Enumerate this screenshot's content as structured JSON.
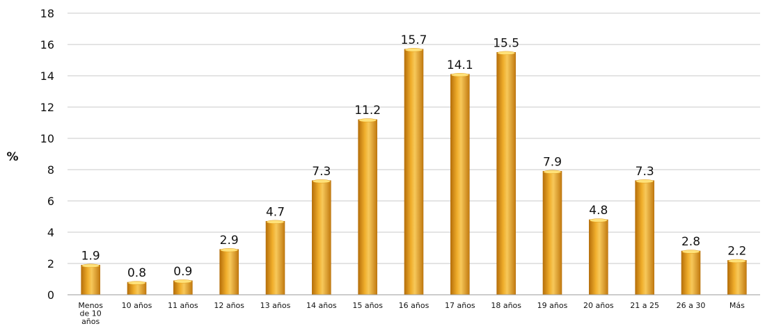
{
  "chart_data": {
    "type": "bar",
    "title": "",
    "xlabel": "",
    "ylabel": "%",
    "ylim": [
      0,
      18
    ],
    "yticks": [
      0,
      2,
      4,
      6,
      8,
      10,
      12,
      14,
      16,
      18
    ],
    "grid": true,
    "legend": "none",
    "categories": [
      "Menos de 10 años",
      "10 años",
      "11 años",
      "12 años",
      "13 años",
      "14 años",
      "15 años",
      "16 años",
      "17 años",
      "18 años",
      "19 años",
      "20 años",
      "21 a 25",
      "26 a 30",
      "Más"
    ],
    "values": [
      1.9,
      0.8,
      0.9,
      2.9,
      4.7,
      7.3,
      11.2,
      15.7,
      14.1,
      15.5,
      7.9,
      4.8,
      7.3,
      2.8,
      2.2
    ],
    "value_labels": [
      "1.9",
      "0.8",
      "0.9",
      "2.9",
      "4.7",
      "7.3",
      "11.2",
      "15.7",
      "14.1",
      "15.5",
      "7.9",
      "4.8",
      "7.3",
      "2.8",
      "2.2"
    ],
    "colors": {
      "bar_fill": "#E8A020",
      "bar_dark": "#B66F0A",
      "bar_highlight": "#F7C85A",
      "bar_top": "#FFE27A",
      "grid": "#C8C8C8",
      "axis": "#9A9A9A",
      "text": "#111111"
    }
  }
}
